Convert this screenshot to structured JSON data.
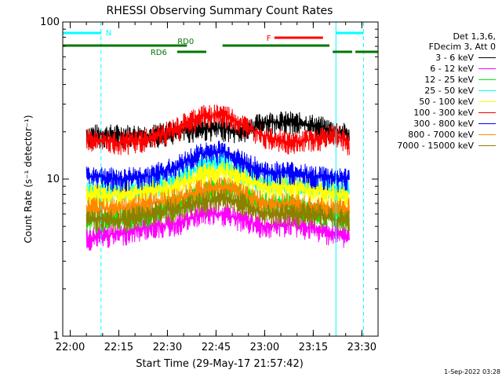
{
  "chart_data": {
    "type": "line",
    "title": "RHESSI Observing Summary Count Rates",
    "xlabel": "Start Time (29-May-17 21:57:42)",
    "ylabel": "Count Rate (s⁻¹ detector⁻¹)",
    "yscale": "log",
    "ylim": [
      1,
      100
    ],
    "ytick_labels": [
      "1",
      "10",
      "100"
    ],
    "xlim": [
      "21:57:42",
      "23:35:00"
    ],
    "xtick_labels": [
      "22:00",
      "22:15",
      "22:30",
      "22:45",
      "23:00",
      "23:15",
      "23:30"
    ],
    "series": [
      {
        "name": "3 - 6 keV",
        "color": "#000000",
        "x": [
          "22:05",
          "22:15",
          "22:25",
          "22:33",
          "22:40",
          "22:47",
          "22:53",
          "23:00",
          "23:08",
          "23:15",
          "23:22",
          "23:26"
        ],
        "y": [
          19,
          19,
          19,
          20,
          21,
          21,
          20,
          23,
          23,
          22,
          20,
          19
        ]
      },
      {
        "name": "6 - 12 keV",
        "color": "#ff00ff",
        "x": [
          "22:05",
          "22:15",
          "22:25",
          "22:33",
          "22:40",
          "22:47",
          "22:53",
          "23:00",
          "23:08",
          "23:15",
          "23:22",
          "23:26"
        ],
        "y": [
          4.2,
          4.5,
          5,
          5.2,
          6,
          6,
          5.5,
          5,
          5.2,
          4.8,
          4.5,
          4.3
        ]
      },
      {
        "name": "12 - 25 keV",
        "color": "#00ee00",
        "x": [
          "22:05",
          "22:15",
          "22:25",
          "22:33",
          "22:40",
          "22:47",
          "22:53",
          "23:00",
          "23:08",
          "23:15",
          "23:22",
          "23:26"
        ],
        "y": [
          5.5,
          5.5,
          6,
          7,
          8,
          9,
          8,
          7,
          7,
          6,
          6,
          5.5
        ]
      },
      {
        "name": "25 - 50 keV",
        "color": "#00ffff",
        "x": [
          "22:05",
          "22:15",
          "22:25",
          "22:33",
          "22:40",
          "22:47",
          "22:53",
          "23:00",
          "23:08",
          "23:15",
          "23:22",
          "23:26"
        ],
        "y": [
          8.5,
          8.5,
          9,
          10,
          12,
          13,
          11,
          9.5,
          9.5,
          9,
          8.5,
          8.5
        ]
      },
      {
        "name": "50 - 100 keV",
        "color": "#ffff00",
        "x": [
          "22:05",
          "22:15",
          "22:25",
          "22:33",
          "22:40",
          "22:47",
          "22:53",
          "23:00",
          "23:08",
          "23:15",
          "23:22",
          "23:26"
        ],
        "y": [
          8,
          8,
          8.5,
          9,
          10.5,
          11.5,
          10,
          9,
          9,
          8.5,
          8,
          8
        ]
      },
      {
        "name": "100 - 300 keV",
        "color": "#ff0000",
        "x": [
          "22:05",
          "22:15",
          "22:25",
          "22:33",
          "22:40",
          "22:47",
          "22:53",
          "23:00",
          "23:08",
          "23:15",
          "23:22",
          "23:26"
        ],
        "y": [
          18,
          17,
          18,
          21,
          25,
          26,
          22,
          19,
          17,
          18,
          19,
          17
        ]
      },
      {
        "name": "300 - 800 keV",
        "color": "#0000ff",
        "x": [
          "22:05",
          "22:15",
          "22:25",
          "22:33",
          "22:40",
          "22:47",
          "22:53",
          "23:00",
          "23:08",
          "23:15",
          "23:22",
          "23:26"
        ],
        "y": [
          10.5,
          10,
          10.5,
          12,
          14.5,
          15,
          13,
          11,
          11,
          10.5,
          10,
          10
        ]
      },
      {
        "name": "800 - 7000 keV",
        "color": "#ff8800",
        "x": [
          "22:05",
          "22:15",
          "22:25",
          "22:33",
          "22:40",
          "22:47",
          "22:53",
          "23:00",
          "23:08",
          "23:15",
          "23:22",
          "23:26"
        ],
        "y": [
          6.5,
          6.5,
          7,
          7.5,
          8.5,
          9,
          8,
          7,
          7,
          6.5,
          6.5,
          6.5
        ]
      },
      {
        "name": "7000 - 15000 keV",
        "color": "#8b8000",
        "x": [
          "22:05",
          "22:15",
          "22:25",
          "22:33",
          "22:40",
          "22:47",
          "22:53",
          "23:00",
          "23:08",
          "23:15",
          "23:22",
          "23:26"
        ],
        "y": [
          5.5,
          5.5,
          6,
          6.5,
          7,
          7.5,
          7,
          6,
          6,
          6,
          5.5,
          5.5
        ]
      }
    ],
    "legend_header": [
      "Det 1,3,6,",
      "FDecim 3, Att 0"
    ],
    "legend_position": "right",
    "annotations": {
      "night": {
        "label": "N",
        "color": "#00ffff",
        "intervals": [
          [
            "21:57:42",
            "22:09:30"
          ],
          [
            "23:22:00",
            "23:30:30"
          ]
        ]
      },
      "flare": {
        "label": "F",
        "color": "#ff0000",
        "intervals": [
          [
            "23:03:00",
            "23:18:00"
          ]
        ]
      },
      "rd0": {
        "label": "RD0",
        "color": "#007700",
        "intervals": [
          [
            "21:57:42",
            "22:36:00"
          ],
          [
            "22:47:00",
            "23:20:00"
          ]
        ]
      },
      "rd6": {
        "label": "RD6",
        "color": "#007700",
        "intervals": [
          [
            "22:33:00",
            "22:42:00"
          ],
          [
            "23:21:00",
            "23:27:00"
          ],
          [
            "23:28:00",
            "23:35:00"
          ]
        ]
      }
    },
    "saa_lines": [
      "21:57:42",
      "22:09:30",
      "23:22:00",
      "23:30:30"
    ],
    "grid": false
  },
  "footer_stamp": "1-Sep-2022 03:28"
}
